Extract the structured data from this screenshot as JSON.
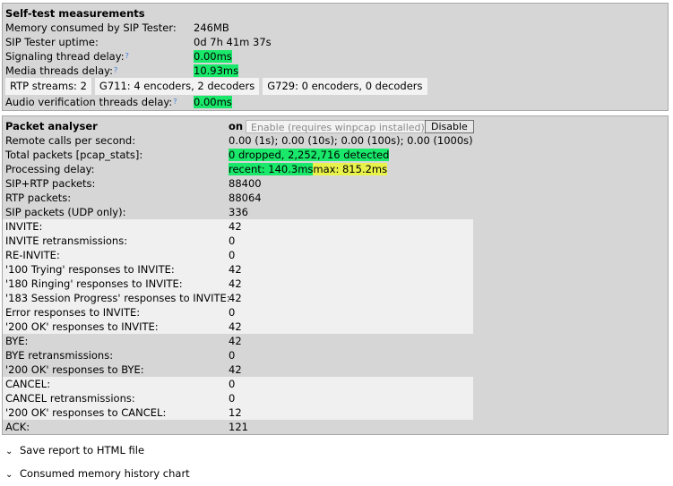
{
  "self_test": {
    "title": "Self-test measurements",
    "rows": [
      {
        "label": "Memory consumed by SIP Tester:",
        "value": "246MB"
      },
      {
        "label": "SIP Tester uptime:",
        "value": "0d 7h 41m 37s"
      },
      {
        "label": "Signaling thread delay:",
        "help": "?",
        "value": "0.00ms"
      },
      {
        "label": "Media threads delay:",
        "help": "?",
        "value": "10.93ms"
      }
    ],
    "rtp": [
      "RTP streams:  2",
      "G711:  4  encoders,   2  decoders",
      "G729:  0  encoders,   0  decoders"
    ],
    "audio_verification": {
      "label": "Audio verification threads delay:",
      "help": "?",
      "value": "0.00ms"
    }
  },
  "packet_analyser": {
    "title": "Packet analyser",
    "state": "on",
    "enable_button": "Enable (requires winpcap installed)",
    "disable_button": "Disable",
    "rows": [
      {
        "label": "Remote calls per second:",
        "value": "0.00 (1s); 0.00 (10s); 0.00 (100s); 0.00 (1000s)"
      },
      {
        "label": "Total packets [pcap_stats]:",
        "value": "0 dropped, 2,252,716 detected"
      },
      {
        "label": "Processing delay:",
        "recent": "recent: 140.3ms",
        "max": "max: 815.2ms"
      },
      {
        "label": "SIP+RTP packets:",
        "value": "88400"
      },
      {
        "label": "RTP packets:",
        "value": "88064"
      },
      {
        "label": "SIP packets (UDP only):",
        "value": "336"
      }
    ],
    "sip_rows": [
      {
        "label": "INVITE:",
        "value": "42"
      },
      {
        "label": "INVITE retransmissions:",
        "value": "0"
      },
      {
        "label": "RE-INVITE:",
        "value": "0"
      },
      {
        "label": "'100 Trying' responses to INVITE:",
        "value": "42"
      },
      {
        "label": "'180 Ringing' responses to INVITE:",
        "value": "42"
      },
      {
        "label": "'183 Session Progress' responses to INVITE:",
        "value": "42"
      },
      {
        "label": "Error responses to INVITE:",
        "value": "0"
      },
      {
        "label": "'200 OK' responses to INVITE:",
        "value": "42"
      },
      {
        "label": "BYE:",
        "value": "42"
      },
      {
        "label": "BYE retransmissions:",
        "value": "0"
      },
      {
        "label": "'200 OK' responses to BYE:",
        "value": "42"
      },
      {
        "label": "CANCEL:",
        "value": "0"
      },
      {
        "label": "CANCEL retransmissions:",
        "value": "0"
      },
      {
        "label": "'200 OK' responses to CANCEL:",
        "value": "12"
      },
      {
        "label": "ACK:",
        "value": "121"
      }
    ]
  },
  "links": {
    "save_report": "Save report to HTML file",
    "memory_chart": "Consumed memory history chart",
    "chevron": "⌄"
  },
  "colors": {
    "highlight_green": "#19e86a",
    "highlight_yellow": "#e8f24a",
    "panel": "#d6d6d6"
  }
}
